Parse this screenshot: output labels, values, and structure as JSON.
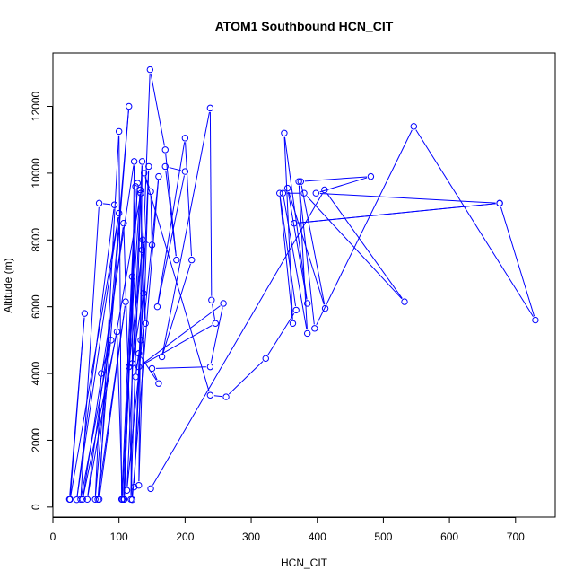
{
  "chart_data": {
    "type": "line",
    "title": "ATOM1 Southbound HCN_CIT",
    "xlabel": "HCN_CIT",
    "ylabel": "Altitude (m)",
    "xlim": [
      0,
      760
    ],
    "ylim": [
      -300,
      13600
    ],
    "xticks": [
      0,
      100,
      200,
      300,
      400,
      500,
      600,
      700
    ],
    "yticks": [
      0,
      2000,
      4000,
      6000,
      8000,
      10000,
      12000
    ],
    "grid": false,
    "legend": "none",
    "series": [
      {
        "color": "#0000ff",
        "marker": "open-circle",
        "points": [
          [
            25,
            230
          ],
          [
            48,
            5800
          ],
          [
            26,
            230
          ],
          [
            100,
            8800
          ],
          [
            36,
            220
          ],
          [
            93,
            9050
          ],
          [
            70,
            9100
          ],
          [
            42,
            230
          ],
          [
            88,
            5000
          ],
          [
            73,
            4000
          ],
          [
            64,
            230
          ],
          [
            115,
            12000
          ],
          [
            68,
            230
          ],
          [
            110,
            6150
          ],
          [
            70,
            230
          ],
          [
            100,
            11250
          ],
          [
            104,
            230
          ],
          [
            125,
            9600
          ],
          [
            108,
            230
          ],
          [
            120,
            6900
          ],
          [
            107,
            230
          ],
          [
            128,
            9700
          ],
          [
            105,
            230
          ],
          [
            97,
            5250
          ],
          [
            45,
            230
          ],
          [
            123,
            10350
          ],
          [
            118,
            230
          ],
          [
            133,
            9400
          ],
          [
            52,
            230
          ],
          [
            107,
            8500
          ],
          [
            120,
            220
          ],
          [
            160,
            9900
          ],
          [
            112,
            500
          ],
          [
            135,
            10350
          ],
          [
            130,
            650
          ],
          [
            145,
            10200
          ],
          [
            123,
            600
          ],
          [
            147,
            13100
          ],
          [
            170,
            10700
          ],
          [
            187,
            7400
          ],
          [
            170,
            10200
          ],
          [
            200,
            10050
          ],
          [
            158,
            6000
          ],
          [
            200,
            11050
          ],
          [
            210,
            7400
          ],
          [
            165,
            4500
          ],
          [
            238,
            11950
          ],
          [
            240,
            6200
          ],
          [
            246,
            5500
          ],
          [
            130,
            4200
          ],
          [
            258,
            6100
          ],
          [
            238,
            4200
          ],
          [
            150,
            4150
          ],
          [
            160,
            3700
          ],
          [
            130,
            4600
          ],
          [
            125,
            3900
          ],
          [
            133,
            5000
          ],
          [
            137,
            6400
          ],
          [
            120,
            4300
          ],
          [
            135,
            7700
          ],
          [
            115,
            4200
          ],
          [
            132,
            9500
          ],
          [
            140,
            5500
          ],
          [
            136,
            8000
          ],
          [
            150,
            7850
          ],
          [
            148,
            9450
          ],
          [
            138,
            10000
          ],
          [
            238,
            3350
          ],
          [
            262,
            3300
          ],
          [
            322,
            4450
          ],
          [
            368,
            5900
          ],
          [
            343,
            9400
          ],
          [
            363,
            5500
          ],
          [
            350,
            11200
          ],
          [
            385,
            6100
          ],
          [
            355,
            9550
          ],
          [
            412,
            5950
          ],
          [
            375,
            9750
          ],
          [
            481,
            9900
          ],
          [
            398,
            9400
          ],
          [
            676,
            9100
          ],
          [
            365,
            8500
          ],
          [
            676,
            9100
          ],
          [
            730,
            5600
          ],
          [
            546,
            11400
          ],
          [
            396,
            5350
          ],
          [
            372,
            9750
          ],
          [
            385,
            5200
          ],
          [
            348,
            9400
          ],
          [
            380,
            9400
          ],
          [
            532,
            6150
          ],
          [
            411,
            9500
          ],
          [
            148,
            550
          ]
        ]
      }
    ]
  }
}
